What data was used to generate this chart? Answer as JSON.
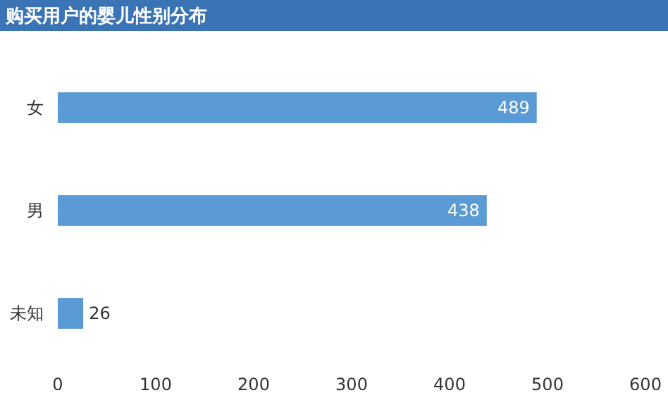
{
  "chart_data": {
    "type": "bar",
    "orientation": "horizontal",
    "title": "购买用户的婴儿性别分布",
    "categories": [
      "女",
      "男",
      "未知"
    ],
    "values": [
      489,
      438,
      26
    ],
    "color": "#5b9bd5",
    "xlim": [
      0,
      600
    ],
    "xticks": [
      0,
      100,
      200,
      300,
      400,
      500,
      600
    ],
    "data_labels": true,
    "grid": false
  }
}
